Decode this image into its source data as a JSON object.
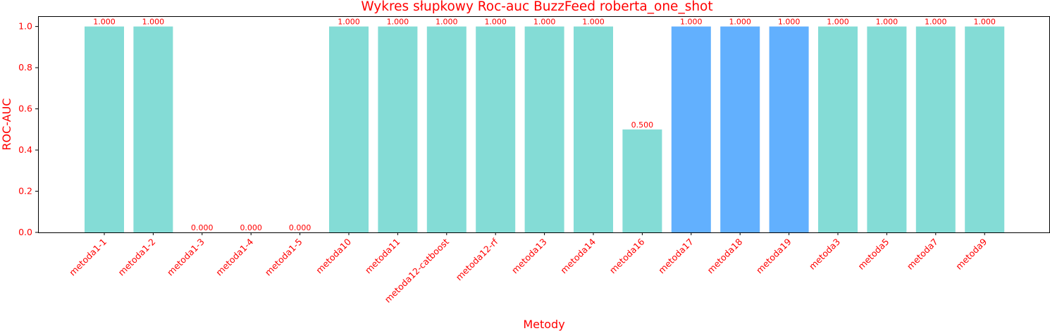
{
  "chart_data": {
    "type": "bar",
    "title": "Wykres słupkowy Roc-auc BuzzFeed roberta_one_shot",
    "xlabel": "Metody",
    "ylabel": "ROC-AUC",
    "ylim": [
      0,
      1.05
    ],
    "yticks": [
      "0.0",
      "0.2",
      "0.4",
      "0.6",
      "0.8",
      "1.0"
    ],
    "grid": false,
    "legend": "none",
    "categories": [
      "metoda1-1",
      "metoda1-2",
      "metoda1-3",
      "metoda1-4",
      "metoda1-5",
      "metoda10",
      "metoda11",
      "metoda12-catboost",
      "metoda12-rf",
      "metoda13",
      "metoda14",
      "metoda16",
      "metoda17",
      "metoda18",
      "metoda19",
      "metoda3",
      "metoda5",
      "metoda7",
      "metoda9"
    ],
    "values": [
      1.0,
      1.0,
      0.0,
      0.0,
      0.0,
      1.0,
      1.0,
      1.0,
      1.0,
      1.0,
      1.0,
      0.5,
      1.0,
      1.0,
      1.0,
      1.0,
      1.0,
      1.0,
      1.0
    ],
    "value_labels": [
      "1.000",
      "1.000",
      "0.000",
      "0.000",
      "0.000",
      "1.000",
      "1.000",
      "1.000",
      "1.000",
      "1.000",
      "1.000",
      "0.500",
      "1.000",
      "1.000",
      "1.000",
      "1.000",
      "1.000",
      "1.000",
      "1.000"
    ],
    "bar_colors": [
      "#84dcd6",
      "#84dcd6",
      "#84dcd6",
      "#84dcd6",
      "#84dcd6",
      "#84dcd6",
      "#84dcd6",
      "#84dcd6",
      "#84dcd6",
      "#84dcd6",
      "#84dcd6",
      "#84dcd6",
      "#62b0fe",
      "#62b0fe",
      "#62b0fe",
      "#84dcd6",
      "#84dcd6",
      "#84dcd6",
      "#84dcd6"
    ],
    "text_color": "#ff0000"
  }
}
